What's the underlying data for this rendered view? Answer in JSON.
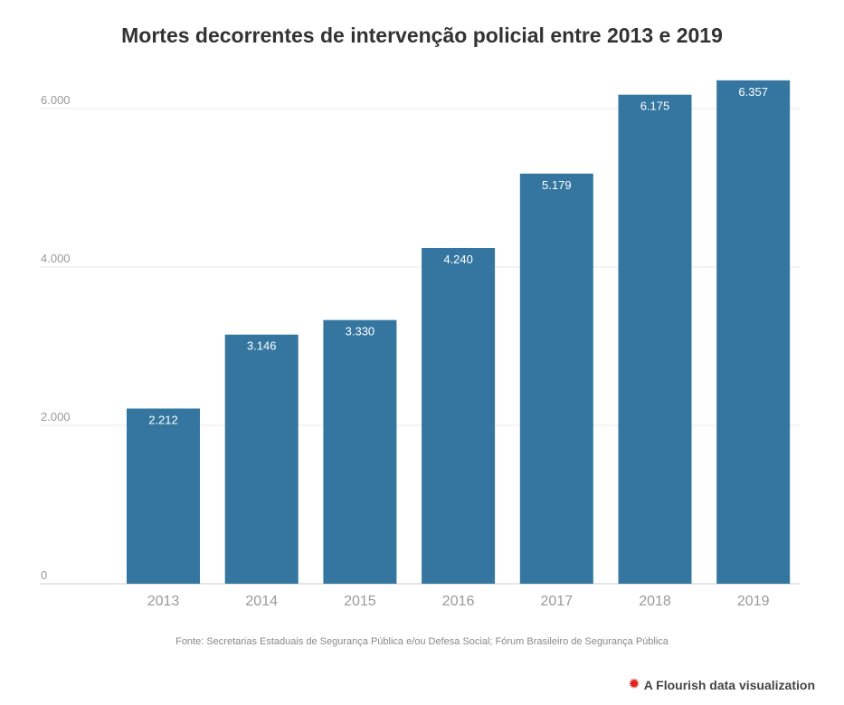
{
  "chart_data": {
    "type": "bar",
    "title": "Mortes decorrentes de intervenção policial entre 2013 e 2019",
    "categories": [
      "2013",
      "2014",
      "2015",
      "2016",
      "2017",
      "2018",
      "2019"
    ],
    "values": [
      2212,
      3146,
      3330,
      4240,
      5179,
      6175,
      6357
    ],
    "value_labels": [
      "2.212",
      "3.146",
      "3.330",
      "4.240",
      "5.179",
      "6.175",
      "6.357"
    ],
    "y_ticks": [
      0,
      2000,
      4000,
      6000
    ],
    "y_tick_labels": [
      "0",
      "2.000",
      "4.000",
      "6.000"
    ],
    "ylim": [
      0,
      6000
    ],
    "xlabel": "",
    "ylabel": "",
    "grid": true,
    "legend": "none",
    "bar_color": "#3476a0"
  },
  "source": "Fonte: Secretarias Estaduais de Segurança Pública e/ou Defesa Social; Fórum Brasileiro de Segurança Pública",
  "credit": {
    "icon": "flourish-logo-icon",
    "label": "A Flourish data visualization",
    "color": "#e0211d"
  }
}
